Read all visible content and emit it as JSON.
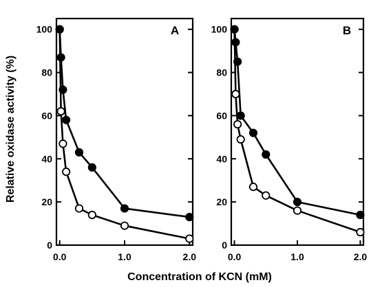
{
  "figure": {
    "xlabel": "Concentration of KCN (mM)",
    "ylabel": "Relative oxidase activity (%)"
  },
  "chart_data": [
    {
      "type": "line",
      "panel_label": "A",
      "xlabel": "Concentration of KCN (mM)",
      "ylabel": "Relative oxidase activity (%)",
      "xlim": [
        -0.05,
        2.05
      ],
      "ylim": [
        0,
        105
      ],
      "x_ticks": [
        0.0,
        1.0,
        2.0
      ],
      "x_tick_labels": [
        "0.0",
        "1.0",
        "2.0"
      ],
      "y_ticks": [
        0,
        20,
        40,
        60,
        80,
        100
      ],
      "y_tick_labels": [
        "0",
        "20",
        "40",
        "60",
        "80",
        "100"
      ],
      "grid": false,
      "series": [
        {
          "marker": "filled-circle",
          "color": "#000000",
          "x": [
            0.0,
            0.02,
            0.05,
            0.1,
            0.3,
            0.5,
            1.0,
            2.0
          ],
          "y": [
            100,
            87,
            72,
            58,
            43,
            36,
            17,
            13
          ]
        },
        {
          "marker": "open-circle",
          "color": "#000000",
          "x": [
            0.0,
            0.02,
            0.05,
            0.1,
            0.3,
            0.5,
            1.0,
            2.0
          ],
          "y": [
            100,
            62,
            47,
            34,
            17,
            14,
            9,
            3
          ]
        }
      ]
    },
    {
      "type": "line",
      "panel_label": "B",
      "xlabel": "Concentration of KCN (mM)",
      "ylabel": "Relative oxidase activity (%)",
      "xlim": [
        -0.05,
        2.05
      ],
      "ylim": [
        0,
        105
      ],
      "x_ticks": [
        0.0,
        1.0,
        2.0
      ],
      "x_tick_labels": [
        "0.0",
        "1.0",
        "2.0"
      ],
      "y_ticks": [
        0,
        20,
        40,
        60,
        80,
        100
      ],
      "y_tick_labels": [
        "0",
        "20",
        "40",
        "60",
        "80",
        "100"
      ],
      "grid": false,
      "series": [
        {
          "marker": "filled-circle",
          "color": "#000000",
          "x": [
            0.0,
            0.02,
            0.05,
            0.1,
            0.3,
            0.5,
            1.0,
            2.0
          ],
          "y": [
            100,
            94,
            85,
            60,
            52,
            42,
            20,
            14
          ]
        },
        {
          "marker": "open-circle",
          "color": "#000000",
          "x": [
            0.0,
            0.02,
            0.05,
            0.1,
            0.3,
            0.5,
            1.0,
            2.0
          ],
          "y": [
            100,
            70,
            56,
            49,
            27,
            23,
            16,
            6
          ]
        }
      ]
    }
  ]
}
